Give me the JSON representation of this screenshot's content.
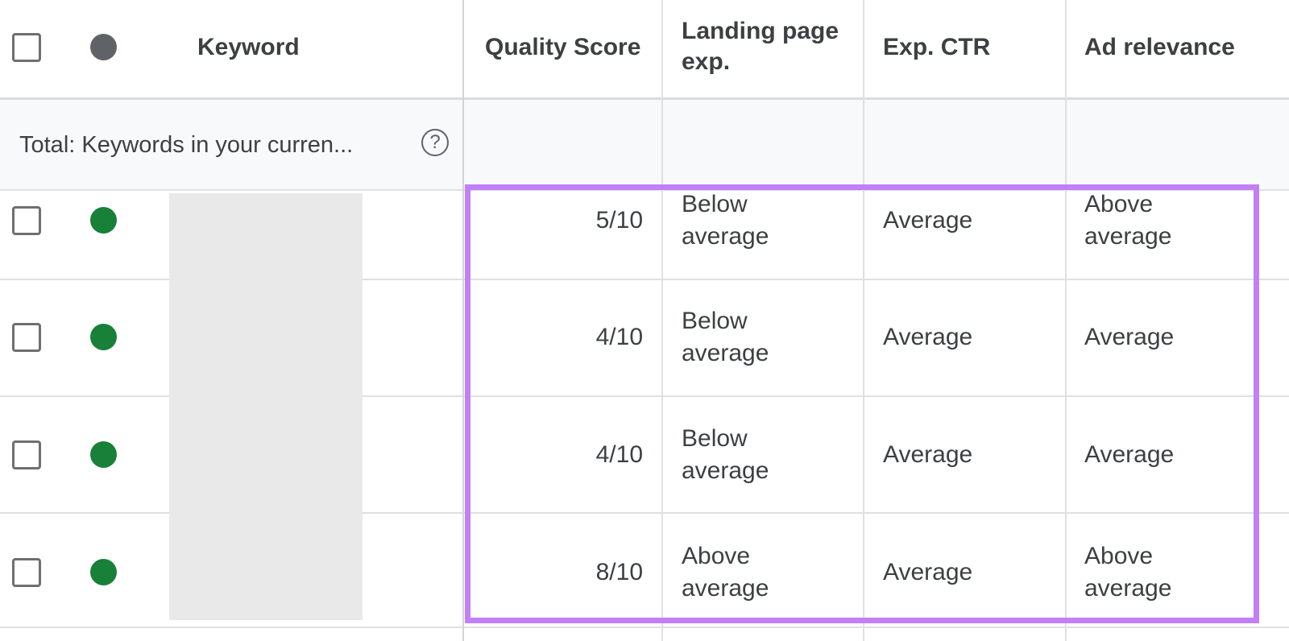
{
  "header": {
    "keyword": "Keyword",
    "quality_score": "Quality Score",
    "landing_page_line1": "Landing page",
    "landing_page_line2": "exp.",
    "exp_ctr": "Exp. CTR",
    "ad_relevance": "Ad relevance",
    "status_dot_color": "#5f6368"
  },
  "total": {
    "label": "Total: Keywords in your curren...",
    "help_icon": "?"
  },
  "colors": {
    "highlight": "#c27ff7",
    "enabled": "#188038"
  },
  "rows": [
    {
      "quality_score": "5/10",
      "landing_l1": "Below",
      "landing_l2": "average",
      "exp_ctr": "Average",
      "ad_l1": "Above",
      "ad_l2": "average"
    },
    {
      "quality_score": "4/10",
      "landing_l1": "Below",
      "landing_l2": "average",
      "exp_ctr": "Average",
      "ad_l1": "Average",
      "ad_l2": ""
    },
    {
      "quality_score": "4/10",
      "landing_l1": "Below",
      "landing_l2": "average",
      "exp_ctr": "Average",
      "ad_l1": "Average",
      "ad_l2": ""
    },
    {
      "quality_score": "8/10",
      "landing_l1": "Above",
      "landing_l2": "average",
      "exp_ctr": "Average",
      "ad_l1": "Above",
      "ad_l2": "average"
    }
  ]
}
